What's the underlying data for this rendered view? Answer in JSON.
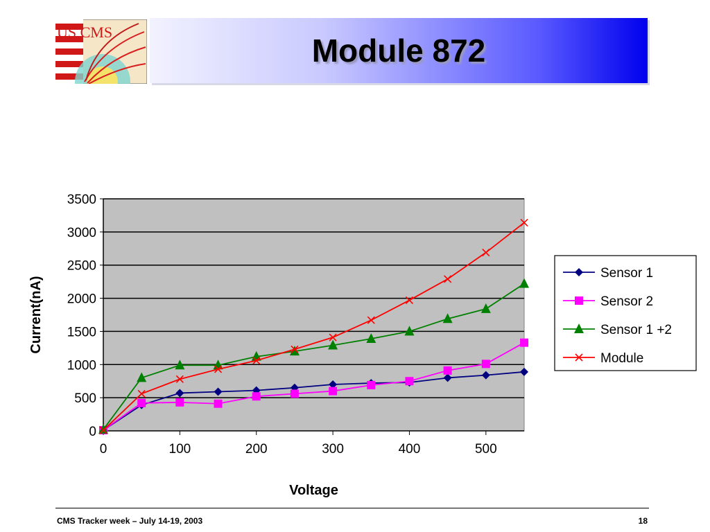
{
  "slide": {
    "title": "Module 872",
    "logo_text": "US CMS",
    "footer": "CMS Tracker week – July 14-19, 2003",
    "page_number": "18"
  },
  "colors": {
    "header_gradient": [
      "#f2f2ff",
      "#0000ee"
    ],
    "plot_background": "#c0c0c0"
  },
  "chart_data": {
    "type": "line",
    "title": "",
    "xlabel": "Voltage",
    "ylabel": "Current(nA)",
    "xlim": [
      0,
      550
    ],
    "ylim": [
      0,
      3500
    ],
    "xticks": [
      0,
      100,
      200,
      300,
      400,
      500
    ],
    "yticks": [
      0,
      500,
      1000,
      1500,
      2000,
      2500,
      3000,
      3500
    ],
    "grid": "horizontal",
    "legend_position": "right",
    "series": [
      {
        "name": "Sensor 1",
        "color": "#000080",
        "marker": "diamond",
        "x": [
          0,
          50,
          100,
          150,
          200,
          250,
          300,
          350,
          400,
          450,
          500,
          550
        ],
        "y": [
          10,
          390,
          570,
          590,
          610,
          650,
          700,
          720,
          730,
          800,
          840,
          890
        ]
      },
      {
        "name": "Sensor 2",
        "color": "#ff00ff",
        "marker": "square",
        "x": [
          0,
          50,
          100,
          150,
          200,
          250,
          300,
          350,
          400,
          450,
          500,
          550
        ],
        "y": [
          10,
          420,
          430,
          410,
          520,
          560,
          600,
          690,
          750,
          910,
          1010,
          1330
        ]
      },
      {
        "name": "Sensor 1 +2",
        "color": "#008000",
        "marker": "triangle",
        "x": [
          0,
          50,
          100,
          150,
          200,
          250,
          300,
          350,
          400,
          450,
          500,
          550
        ],
        "y": [
          20,
          800,
          990,
          990,
          1120,
          1200,
          1290,
          1390,
          1500,
          1690,
          1840,
          2220
        ]
      },
      {
        "name": "Module",
        "color": "#ff0000",
        "marker": "x",
        "x": [
          0,
          50,
          100,
          150,
          200,
          250,
          300,
          350,
          400,
          450,
          500,
          550
        ],
        "y": [
          10,
          560,
          780,
          930,
          1060,
          1230,
          1410,
          1670,
          1970,
          2290,
          2690,
          3140
        ]
      }
    ]
  }
}
